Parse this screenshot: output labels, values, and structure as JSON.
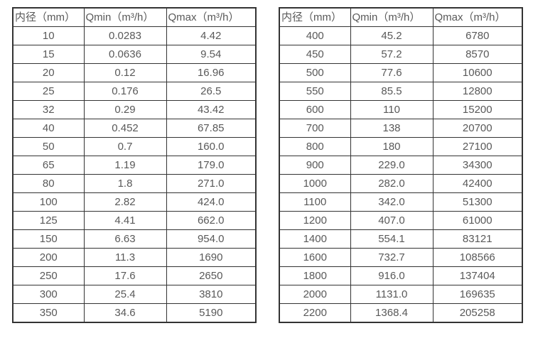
{
  "colors": {
    "border": "#333333",
    "text": "#595959",
    "background": "#ffffff"
  },
  "tables": [
    {
      "title": "flow-table-small-diameters",
      "headers": [
        "内径（mm）",
        "Qmin（m³/h）",
        "Qmax（m³/h）"
      ],
      "rows": [
        [
          "10",
          "0.0283",
          "4.42"
        ],
        [
          "15",
          "0.0636",
          "9.54"
        ],
        [
          "20",
          "0.12",
          "16.96"
        ],
        [
          "25",
          "0.176",
          "26.5"
        ],
        [
          "32",
          "0.29",
          "43.42"
        ],
        [
          "40",
          "0.452",
          "67.85"
        ],
        [
          "50",
          "0.7",
          "160.0"
        ],
        [
          "65",
          "1.19",
          "179.0"
        ],
        [
          "80",
          "1.8",
          "271.0"
        ],
        [
          "100",
          "2.82",
          "424.0"
        ],
        [
          "125",
          "4.41",
          "662.0"
        ],
        [
          "150",
          "6.63",
          "954.0"
        ],
        [
          "200",
          "11.3",
          "1690"
        ],
        [
          "250",
          "17.6",
          "2650"
        ],
        [
          "300",
          "25.4",
          "3810"
        ],
        [
          "350",
          "34.6",
          "5190"
        ]
      ]
    },
    {
      "title": "flow-table-large-diameters",
      "headers": [
        "内径（mm）",
        "Qmin（m³/h）",
        "Qmax（m³/h）"
      ],
      "rows": [
        [
          "400",
          "45.2",
          "6780"
        ],
        [
          "450",
          "57.2",
          "8570"
        ],
        [
          "500",
          "77.6",
          "10600"
        ],
        [
          "550",
          "85.5",
          "12800"
        ],
        [
          "600",
          "110",
          "15200"
        ],
        [
          "700",
          "138",
          "20700"
        ],
        [
          "800",
          "180",
          "27100"
        ],
        [
          "900",
          "229.0",
          "34300"
        ],
        [
          "1000",
          "282.0",
          "42400"
        ],
        [
          "1100",
          "342.0",
          "51300"
        ],
        [
          "1200",
          "407.0",
          "61000"
        ],
        [
          "1400",
          "554.1",
          "83121"
        ],
        [
          "1600",
          "732.7",
          "108566"
        ],
        [
          "1800",
          "916.0",
          "137404"
        ],
        [
          "2000",
          "1131.0",
          "169635"
        ],
        [
          "2200",
          "1368.4",
          "205258"
        ]
      ]
    }
  ]
}
